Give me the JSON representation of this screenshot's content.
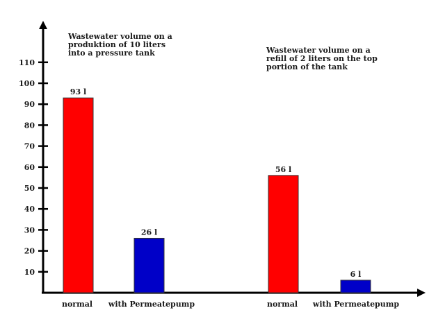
{
  "chart_data": {
    "type": "bar",
    "categories": [
      "normal",
      "with Permeatepump",
      "normal",
      "with Permeatepump"
    ],
    "values": [
      93,
      26,
      56,
      6
    ],
    "data_labels": [
      "93 l",
      "26 l",
      "56 l",
      "6 l"
    ],
    "groups": [
      {
        "title_lines": [
          "Wastewater volume on a",
          "produktion of 10 liters",
          "into a pressure tank"
        ],
        "categories": [
          "normal",
          "with Permeatepump"
        ],
        "values": [
          93,
          26
        ]
      },
      {
        "title_lines": [
          "Wastewater volume on a",
          "refill of 2 liters on the top",
          "portion of the tank"
        ],
        "categories": [
          "normal",
          "with Permeatepump"
        ],
        "values": [
          56,
          6
        ]
      }
    ],
    "bar_colors": [
      "#ff0000",
      "#0000c8",
      "#ff0000",
      "#0000c8"
    ],
    "yticks": [
      10,
      20,
      30,
      40,
      50,
      60,
      70,
      80,
      90,
      100,
      110
    ],
    "ylim": [
      0,
      120
    ],
    "grid": false
  }
}
